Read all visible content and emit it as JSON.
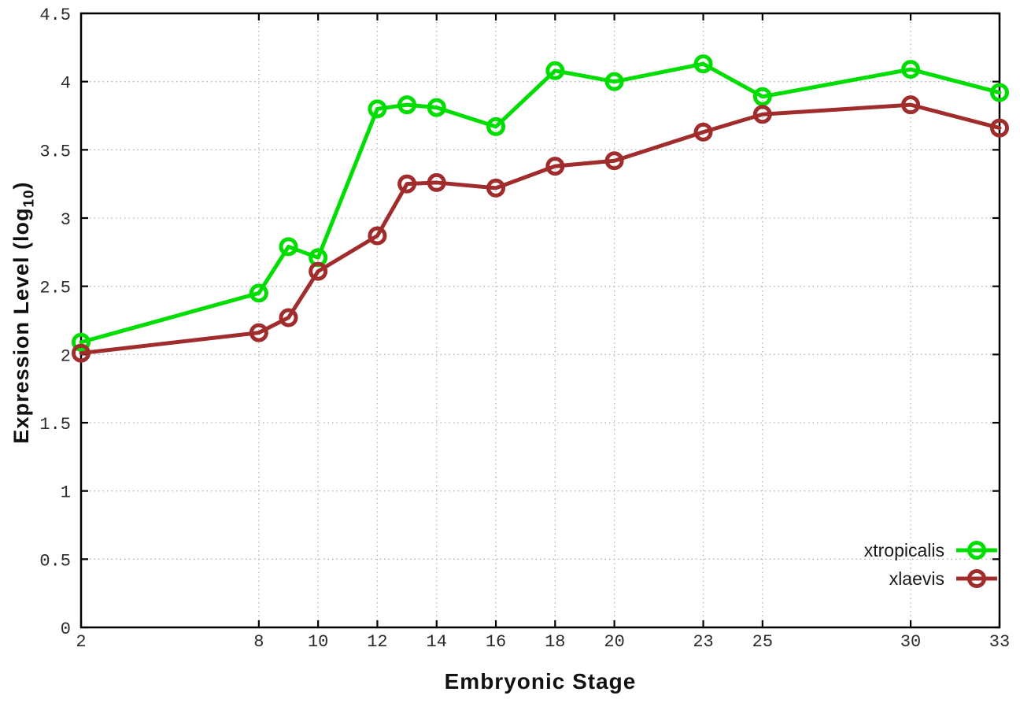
{
  "chart_data": {
    "type": "line",
    "title": "",
    "xlabel": "Embryonic Stage",
    "ylabel_parts": {
      "main": "Expression Level (log",
      "sub": "10",
      "close": ")"
    },
    "xlim": [
      2,
      33
    ],
    "ylim": [
      0,
      4.5
    ],
    "grid": true,
    "legend_position": "inside bottom-right",
    "xticks": [
      2,
      8,
      10,
      12,
      14,
      16,
      18,
      20,
      23,
      25,
      30,
      33
    ],
    "yticks": [
      0,
      0.5,
      1,
      1.5,
      2,
      2.5,
      3,
      3.5,
      4,
      4.5
    ],
    "x": [
      2,
      8,
      9,
      10,
      12,
      13,
      14,
      16,
      18,
      20,
      23,
      25,
      30,
      33
    ],
    "series": [
      {
        "name": "xtropicalis",
        "color": "#00dd00",
        "marker": "open-circle",
        "values": [
          2.09,
          2.45,
          2.79,
          2.71,
          3.8,
          3.83,
          3.81,
          3.67,
          4.08,
          4.0,
          4.13,
          3.89,
          4.09,
          3.92
        ]
      },
      {
        "name": "xlaevis",
        "color": "#a02c2c",
        "marker": "open-circle",
        "values": [
          2.01,
          2.16,
          2.27,
          2.61,
          2.87,
          3.25,
          3.26,
          3.22,
          3.38,
          3.42,
          3.63,
          3.76,
          3.83,
          3.66
        ]
      }
    ],
    "style": {
      "grid_color": "#b4b4b4",
      "border_color": "#000000",
      "tick_label_color": "#2b2b2b",
      "background": "#ffffff"
    }
  }
}
